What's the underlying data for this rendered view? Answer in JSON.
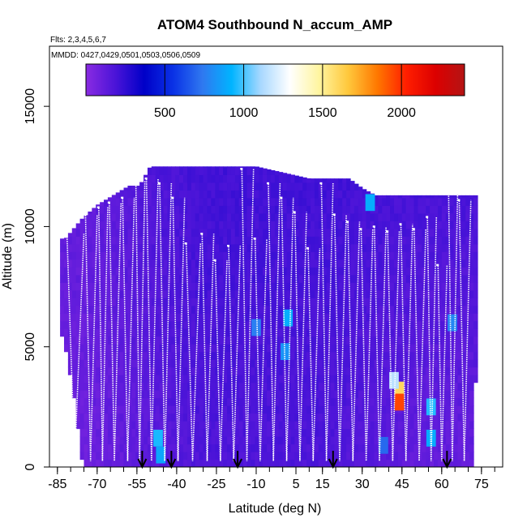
{
  "chart_data": {
    "type": "heatmap",
    "title": "ATOM4 Southbound N_accum_AMP",
    "flights_note": "Flts: 2,3,4,5,6,7",
    "dates_note": "MMDD: 0427,0429,0501,0503,0506,0509",
    "xlabel": "Latitude (deg N)",
    "ylabel": "Altitude (m)",
    "xlim": [
      -88,
      83
    ],
    "ylim": [
      0,
      17500
    ],
    "x_ticks": [
      -85,
      -70,
      -55,
      -40,
      -25,
      -10,
      5,
      15,
      30,
      45,
      60,
      75
    ],
    "x_tick_labels": [
      "-85",
      "-70",
      "-55",
      "-40",
      "-25",
      "-10",
      "5",
      "15",
      "30",
      "45",
      "60",
      "75"
    ],
    "y_ticks": [
      0,
      5000,
      10000,
      15000
    ],
    "y_tick_labels": [
      "0",
      "5000",
      "10000",
      "15000"
    ],
    "colorbar": {
      "min": 0,
      "max": 2400,
      "ticks": [
        500,
        1000,
        1500,
        2000
      ],
      "tick_labels": [
        "500",
        "1000",
        "1500",
        "2000"
      ],
      "colors": [
        "#8a2be2",
        "#4b14d8",
        "#0000c8",
        "#0a32e6",
        "#2f78f0",
        "#00b4ff",
        "#a8d8ff",
        "#ffffff",
        "#fff5a0",
        "#ffc83c",
        "#ff7800",
        "#ff1e00",
        "#dc0000",
        "#b41414"
      ]
    },
    "profile_bottoms": [
      {
        "lat": -53,
        "alt": 400
      },
      {
        "lat": -42,
        "alt": 400
      },
      {
        "lat": -17,
        "alt": 400
      },
      {
        "lat": 19,
        "alt": 400
      },
      {
        "lat": 62,
        "alt": 400
      }
    ],
    "coverage": [
      {
        "lat": -82,
        "top": 9500
      },
      {
        "lat": -76,
        "top": 10300
      },
      {
        "lat": -70,
        "top": 10900
      },
      {
        "lat": -64,
        "top": 11300
      },
      {
        "lat": -58,
        "top": 11700
      },
      {
        "lat": -54,
        "top": 11700
      },
      {
        "lat": -50,
        "top": 12500
      },
      {
        "lat": -30,
        "top": 12500
      },
      {
        "lat": -10,
        "top": 12500
      },
      {
        "lat": 10,
        "top": 12000
      },
      {
        "lat": 25,
        "top": 12000
      },
      {
        "lat": 30,
        "top": 11600
      },
      {
        "lat": 35,
        "top": 11300
      },
      {
        "lat": 73,
        "top": 11300
      }
    ],
    "coverage_bottom": [
      {
        "lat": -84,
        "alt": 6000
      },
      {
        "lat": -80,
        "alt": 4000
      },
      {
        "lat": -75,
        "alt": 0
      },
      {
        "lat": 72,
        "alt": 0
      },
      {
        "lat": 73,
        "alt": 5000
      }
    ],
    "features": [
      {
        "lat": -47,
        "alt": 1200,
        "value": 950
      },
      {
        "lat": -46,
        "alt": 500,
        "value": 880
      },
      {
        "lat": -10,
        "alt": 5800,
        "value": 760
      },
      {
        "lat": 2,
        "alt": 6200,
        "value": 900
      },
      {
        "lat": 1,
        "alt": 4800,
        "value": 820
      },
      {
        "lat": 33,
        "alt": 11000,
        "value": 900
      },
      {
        "lat": 44,
        "alt": 3200,
        "value": 1600
      },
      {
        "lat": 44,
        "alt": 2700,
        "value": 1950
      },
      {
        "lat": 42,
        "alt": 3600,
        "value": 1150
      },
      {
        "lat": 56,
        "alt": 2500,
        "value": 960
      },
      {
        "lat": 56,
        "alt": 1200,
        "value": 900
      },
      {
        "lat": 64,
        "alt": 6000,
        "value": 780
      },
      {
        "lat": 38,
        "alt": 900,
        "value": 700
      }
    ],
    "profiles": [
      {
        "lat0": -82,
        "lat1": -75,
        "top": 9700
      },
      {
        "lat0": -75,
        "lat1": -70,
        "top": 10500
      },
      {
        "lat0": -70,
        "lat1": -66,
        "top": 10800
      },
      {
        "lat0": -66,
        "lat1": -61,
        "top": 11000
      },
      {
        "lat0": -61,
        "lat1": -56,
        "top": 11200
      },
      {
        "lat0": -56,
        "lat1": -52,
        "top": 11900
      },
      {
        "lat0": -52,
        "lat1": -47,
        "top": 12000
      },
      {
        "lat0": -47,
        "lat1": -42,
        "top": 11800
      },
      {
        "lat0": -42,
        "lat1": -37,
        "top": 11200
      },
      {
        "lat0": -37,
        "lat1": -31,
        "top": 9300
      },
      {
        "lat0": -31,
        "lat1": -26,
        "top": 9700
      },
      {
        "lat0": -26,
        "lat1": -21,
        "top": 8600
      },
      {
        "lat0": -21,
        "lat1": -16,
        "top": 9200
      },
      {
        "lat0": -16,
        "lat1": -11,
        "top": 12400
      },
      {
        "lat0": -11,
        "lat1": -6,
        "top": 9500
      },
      {
        "lat0": -6,
        "lat1": -1,
        "top": 11800
      },
      {
        "lat0": -1,
        "lat1": 4,
        "top": 11200
      },
      {
        "lat0": 4,
        "lat1": 9,
        "top": 10600
      },
      {
        "lat0": 9,
        "lat1": 14,
        "top": 9100
      },
      {
        "lat0": 14,
        "lat1": 19,
        "top": 11800
      },
      {
        "lat0": 19,
        "lat1": 24,
        "top": 10500
      },
      {
        "lat0": 24,
        "lat1": 29,
        "top": 10200
      },
      {
        "lat0": 29,
        "lat1": 34,
        "top": 9900
      },
      {
        "lat0": 34,
        "lat1": 39,
        "top": 10000
      },
      {
        "lat0": 39,
        "lat1": 44,
        "top": 9800
      },
      {
        "lat0": 44,
        "lat1": 49,
        "top": 10100
      },
      {
        "lat0": 49,
        "lat1": 54,
        "top": 9900
      },
      {
        "lat0": 54,
        "lat1": 58,
        "top": 10400
      },
      {
        "lat0": 58,
        "lat1": 62,
        "top": 8400
      },
      {
        "lat0": 62,
        "lat1": 66,
        "top": 11400
      },
      {
        "lat0": 66,
        "lat1": 71,
        "top": 11100
      }
    ]
  }
}
